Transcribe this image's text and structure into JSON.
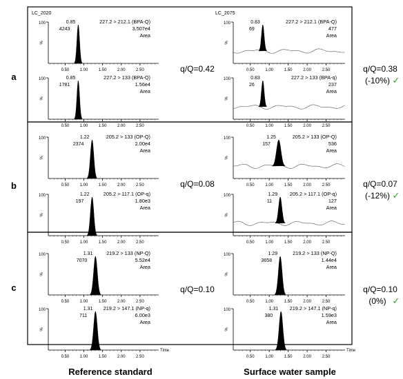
{
  "sample_ids": {
    "reference": "LC_2020",
    "surface": "LC_2075"
  },
  "footer": {
    "reference": "Reference standard",
    "surface": "Surface water sample"
  },
  "panels": [
    {
      "letter": "a",
      "ref_ratio": "q/Q=0.42",
      "sample_ratio": "q/Q=0.38",
      "sample_delta": "(-10%)",
      "check": "✓"
    },
    {
      "letter": "b",
      "ref_ratio": "q/Q=0.08",
      "sample_ratio": "q/Q=0.07",
      "sample_delta": "(-12%)",
      "check": "✓"
    },
    {
      "letter": "c",
      "ref_ratio": "q/Q=0.10",
      "sample_ratio": "q/Q=0.10",
      "sample_delta": "(0%)",
      "check": "✓"
    }
  ],
  "colors": {
    "check": "#22aa22",
    "peak": "#000000",
    "trace": "#555555",
    "frame": "#000000"
  },
  "chart_data": {
    "type": "line",
    "x_ticks": [
      "0.50",
      "1.00",
      "1.50",
      "2.00",
      "2.50"
    ],
    "xlim": [
      0.05,
      3.0
    ],
    "y_top_tick": "100",
    "ylabel": "%",
    "x_axis_label": "Time",
    "traces": [
      {
        "id": "a-ref-q",
        "rt": "0.85",
        "height": "4243",
        "transition": "227.2 > 212.1 (BPA-Q)",
        "area": "3.507e4",
        "area_label": "Area",
        "peak_x": 0.85,
        "peak_width": 0.16,
        "noise": false
      },
      {
        "id": "a-ref-qq",
        "rt": "0.85",
        "height": "1781",
        "transition": "227.2 > 133 (BPA-Q)",
        "area": "1.56e4",
        "area_label": "Area",
        "peak_x": 0.85,
        "peak_width": 0.16,
        "noise": false
      },
      {
        "id": "a-sw-q",
        "rt": "0.83",
        "height": "69",
        "transition": "227.2 > 212.1 (BPA-Q)",
        "area": "477",
        "area_label": "Area",
        "peak_x": 0.83,
        "peak_width": 0.16,
        "noise": true
      },
      {
        "id": "a-sw-qq",
        "rt": "0.83",
        "height": "26",
        "transition": "227.2 > 133 (BPA-q)",
        "area": "237",
        "area_label": "Area",
        "peak_x": 0.83,
        "peak_width": 0.16,
        "noise": true
      },
      {
        "id": "b-ref-q",
        "rt": "1.22",
        "height": "2374",
        "transition": "205.2 > 133 (OP-Q)",
        "area": "2.00e4",
        "area_label": "Area",
        "peak_x": 1.22,
        "peak_width": 0.2,
        "noise": false
      },
      {
        "id": "b-ref-qq",
        "rt": "1.22",
        "height": "197",
        "transition": "205.2 > 117.1 (OP-q)",
        "area": "1.80e3",
        "area_label": "Area",
        "peak_x": 1.22,
        "peak_width": 0.2,
        "noise": false
      },
      {
        "id": "b-sw-q",
        "rt": "1.25",
        "height": "157",
        "transition": "205.2 > 133 (OP-Q)",
        "area": "536",
        "area_label": "Area",
        "peak_x": 1.25,
        "peak_width": 0.26,
        "noise": true
      },
      {
        "id": "b-sw-qq",
        "rt": "1.29",
        "height": "11",
        "transition": "205.2 > 117.1 (OP-q)",
        "area": "127",
        "area_label": "Area",
        "peak_x": 1.29,
        "peak_width": 0.2,
        "noise": true
      },
      {
        "id": "c-ref-q",
        "rt": "1.31",
        "height": "7070",
        "transition": "219.2 > 133 (NP-Q)",
        "area": "5.52e4",
        "area_label": "Area",
        "peak_x": 1.31,
        "peak_width": 0.22,
        "noise": false
      },
      {
        "id": "c-ref-qq",
        "rt": "1.31",
        "height": "711",
        "transition": "219.2 > 147.1 (NP-q)",
        "area": "6.00e3",
        "area_label": "Area",
        "peak_x": 1.31,
        "peak_width": 0.22,
        "noise": false
      },
      {
        "id": "c-sw-q",
        "rt": "1.29",
        "height": "3658",
        "transition": "219.2 > 133 (NP-Q)",
        "area": "1.44e4",
        "area_label": "Area",
        "peak_x": 1.29,
        "peak_width": 0.22,
        "noise": false
      },
      {
        "id": "c-sw-qq",
        "rt": "1.31",
        "height": "380",
        "transition": "219.2 > 147.1 (NP-q)",
        "area": "1.59e3",
        "area_label": "Area",
        "peak_x": 1.31,
        "peak_width": 0.22,
        "noise": false
      }
    ]
  }
}
